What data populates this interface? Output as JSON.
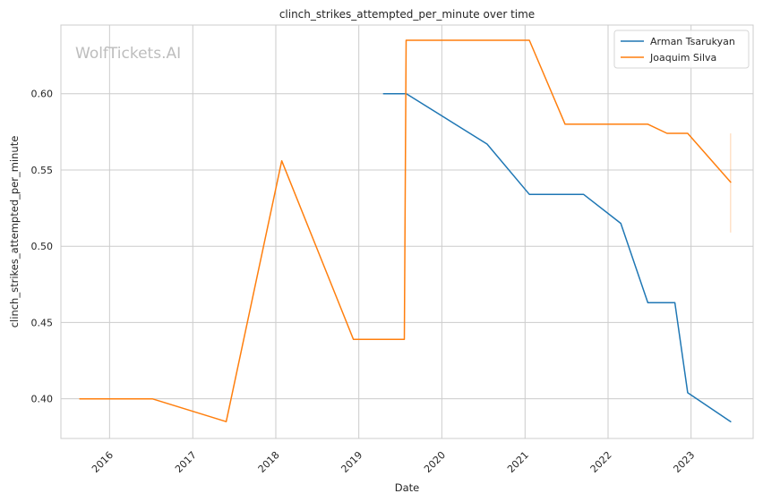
{
  "chart_data": {
    "type": "line",
    "title": "clinch_strikes_attempted_per_minute over time",
    "xlabel": "Date",
    "ylabel": "clinch_strikes_attempted_per_minute",
    "watermark": "WolfTickets.AI",
    "xlim": [
      "2015-06-01",
      "2023-10-01"
    ],
    "ylim": [
      0.374,
      0.645
    ],
    "x_ticks": [
      "2016",
      "2017",
      "2018",
      "2019",
      "2020",
      "2021",
      "2022",
      "2023"
    ],
    "y_ticks": [
      "0.40",
      "0.45",
      "0.50",
      "0.55",
      "0.60"
    ],
    "grid": true,
    "legend_position": "top-right",
    "series": [
      {
        "name": "Arman Tsarukyan",
        "color": "#1f77b4",
        "points": [
          [
            "2019-04-20",
            0.6
          ],
          [
            "2019-07-29",
            0.6
          ],
          [
            "2020-07-18",
            0.567
          ],
          [
            "2021-01-20",
            0.534
          ],
          [
            "2021-09-15",
            0.534
          ],
          [
            "2022-02-26",
            0.515
          ],
          [
            "2022-06-25",
            0.463
          ],
          [
            "2022-10-22",
            0.463
          ],
          [
            "2022-12-17",
            0.404
          ],
          [
            "2023-06-24",
            0.385
          ]
        ]
      },
      {
        "name": "Joaquim Silva",
        "color": "#ff7f0e",
        "points": [
          [
            "2015-08-23",
            0.4
          ],
          [
            "2016-07-07",
            0.4
          ],
          [
            "2017-05-28",
            0.385
          ],
          [
            "2018-01-27",
            0.556
          ],
          [
            "2018-12-08",
            0.439
          ],
          [
            "2019-07-20",
            0.439
          ],
          [
            "2019-07-28",
            0.635
          ],
          [
            "2021-01-20",
            0.635
          ],
          [
            "2021-06-26",
            0.58
          ],
          [
            "2022-06-25",
            0.58
          ],
          [
            "2022-09-17",
            0.574
          ],
          [
            "2022-12-17",
            0.574
          ],
          [
            "2023-06-24",
            0.542
          ]
        ]
      }
    ],
    "error_bar": {
      "color": "#ff7f0e",
      "date": "2023-06-24",
      "low": 0.509,
      "high": 0.574
    }
  }
}
